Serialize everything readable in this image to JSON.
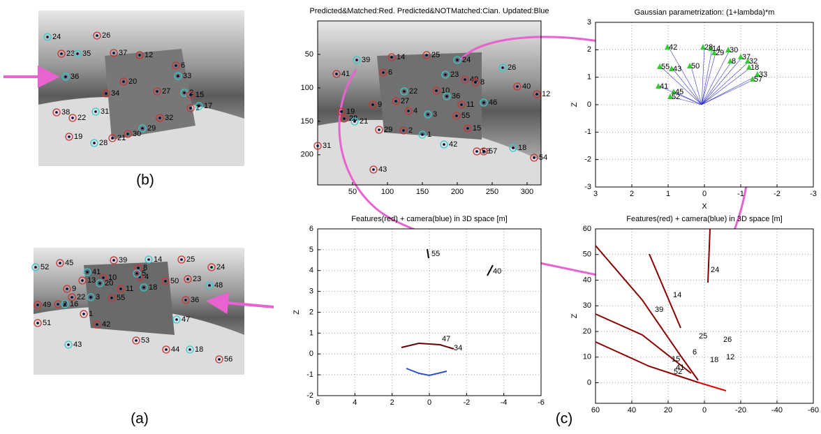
{
  "panel_b": {
    "caption": "(b)",
    "features": [
      "24",
      "26",
      "23",
      "35",
      "37",
      "12",
      "36",
      "6",
      "20",
      "33",
      "34",
      "27",
      "2",
      "15",
      "1",
      "17",
      "38",
      "22",
      "31",
      "32",
      "19",
      "28",
      "21",
      "30",
      "29"
    ]
  },
  "panel_a": {
    "caption": "(a)",
    "features": [
      "52",
      "45",
      "39",
      "14",
      "25",
      "24",
      "41",
      "13",
      "10",
      "20",
      "4",
      "8",
      "5",
      "50",
      "23",
      "48",
      "9",
      "22",
      "3",
      "11",
      "55",
      "18",
      "49",
      "2",
      "16",
      "36",
      "1",
      "47",
      "51",
      "42",
      "43",
      "53",
      "44",
      "18",
      "56"
    ]
  },
  "panel_c": {
    "caption": "(c)",
    "plots": [
      {
        "title": "Predicted&Matched:Red. Predicted&NOTMatched:Cian. Updated:Blue",
        "xlim": [
          0,
          320
        ],
        "ylim": [
          0,
          245
        ],
        "y_reversed": true,
        "xticks": [
          50,
          100,
          150,
          200,
          250,
          300
        ],
        "yticks": [
          50,
          100,
          150,
          200
        ],
        "grid": false,
        "features": [
          "39",
          "14",
          "25",
          "24",
          "41",
          "6",
          "23",
          "49",
          "8",
          "26",
          "40",
          "12",
          "22",
          "27",
          "10",
          "36",
          "9",
          "4",
          "3",
          "11",
          "55",
          "46",
          "19",
          "28",
          "21",
          "29",
          "2",
          "1",
          "15",
          "31",
          "42",
          "58",
          "57",
          "18",
          "54",
          "43"
        ]
      },
      {
        "title": "Gaussian parametrization: (1+lambda)*m",
        "xlim": [
          3,
          -3
        ],
        "ylim": [
          -3,
          3
        ],
        "xticks": [
          3,
          2,
          1,
          0,
          -1,
          -2,
          -3
        ],
        "yticks": [
          -3,
          -2,
          -1,
          0,
          1,
          2,
          3
        ],
        "xlabel": "X",
        "ylabel": "Z",
        "grid": true,
        "features": [
          "42",
          "28",
          "14",
          "30",
          "29",
          "37",
          "55",
          "43",
          "50",
          "8",
          "32",
          "18",
          "33",
          "57",
          "45",
          "52",
          "41"
        ]
      },
      {
        "title": "Features(red) + camera(blue) in 3D space [m]",
        "xlim": [
          6,
          -6
        ],
        "ylim": [
          -2,
          6
        ],
        "xticks": [
          6,
          4,
          2,
          0,
          -2,
          -4,
          -6
        ],
        "yticks": [
          -2,
          -1,
          0,
          1,
          2,
          3,
          4,
          5,
          6
        ],
        "ylabel": "Z",
        "grid": true,
        "features": [
          "55",
          "40",
          "47",
          "34"
        ]
      },
      {
        "title": "Features(red) + camera(blue) in 3D space [m]",
        "xlim": [
          60,
          -60
        ],
        "ylim": [
          -8,
          60
        ],
        "xticks": [
          60,
          40,
          20,
          0,
          -20,
          -40,
          -60
        ],
        "yticks": [
          0,
          10,
          20,
          30,
          40,
          50,
          60
        ],
        "ylabel": "Z",
        "grid": true,
        "features": [
          "24",
          "14",
          "39",
          "25",
          "26",
          "15",
          "6",
          "41",
          "18",
          "12",
          "52"
        ]
      }
    ]
  }
}
